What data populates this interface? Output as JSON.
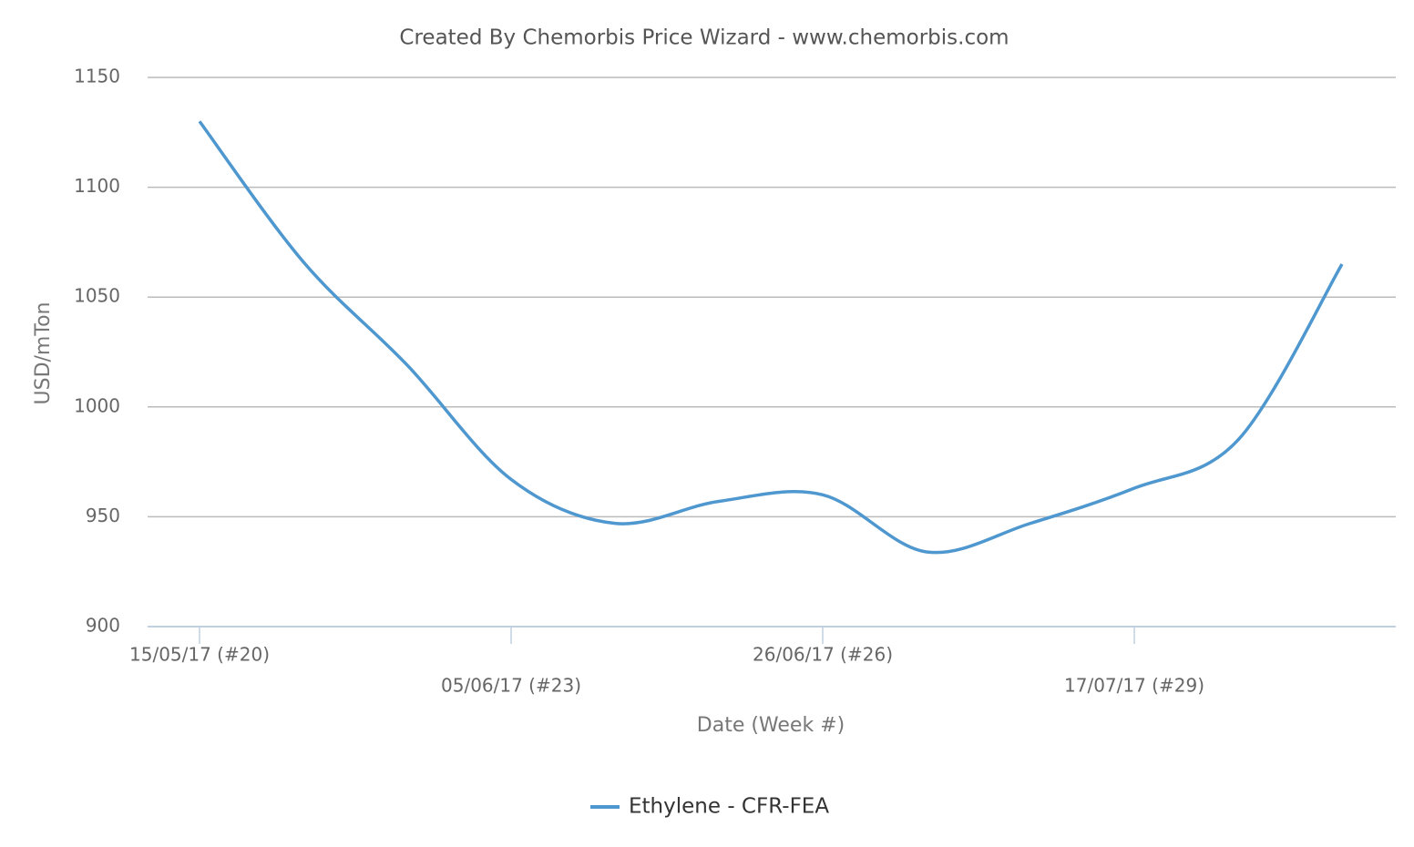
{
  "chart_data": {
    "type": "line",
    "title": "Created By Chemorbis Price Wizard - www.chemorbis.com",
    "x_label": "Date (Week #)",
    "y_label": "USD/mTon",
    "categories": [
      "15/05/17 (#20)",
      null,
      null,
      "05/06/17 (#23)",
      null,
      null,
      "26/06/17 (#26)",
      null,
      null,
      "17/07/17 (#29)",
      null,
      null
    ],
    "series": [
      {
        "name": "Ethylene - CFR-FEA",
        "color": "#4e97cf",
        "values": [
          1130,
          1066,
          1019,
          967,
          947,
          957,
          960,
          934,
          947,
          963,
          985,
          1065
        ]
      }
    ],
    "ylim": [
      900,
      1150
    ],
    "yticks": [
      900,
      950,
      1000,
      1050,
      1100,
      1150
    ],
    "grid": true
  }
}
